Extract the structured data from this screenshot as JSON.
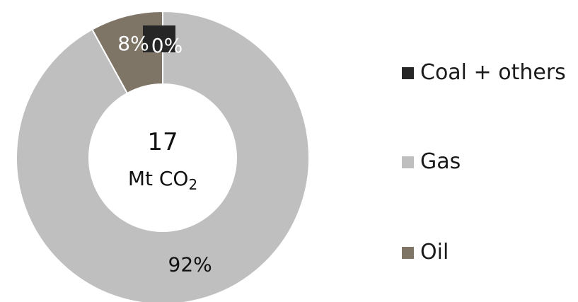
{
  "chart_data": {
    "type": "pie",
    "variant": "donut",
    "categories": [
      "Coal + others",
      "Gas",
      "Oil"
    ],
    "values": [
      0,
      92,
      8
    ],
    "data_labels": [
      "0%",
      "92%",
      "8%"
    ],
    "colors": [
      "#262626",
      "#bfbfbf",
      "#7f7567"
    ],
    "center_label": {
      "value": "17",
      "unit": "Mt CO",
      "unit_subscript": "2"
    },
    "legend_position": "right"
  }
}
